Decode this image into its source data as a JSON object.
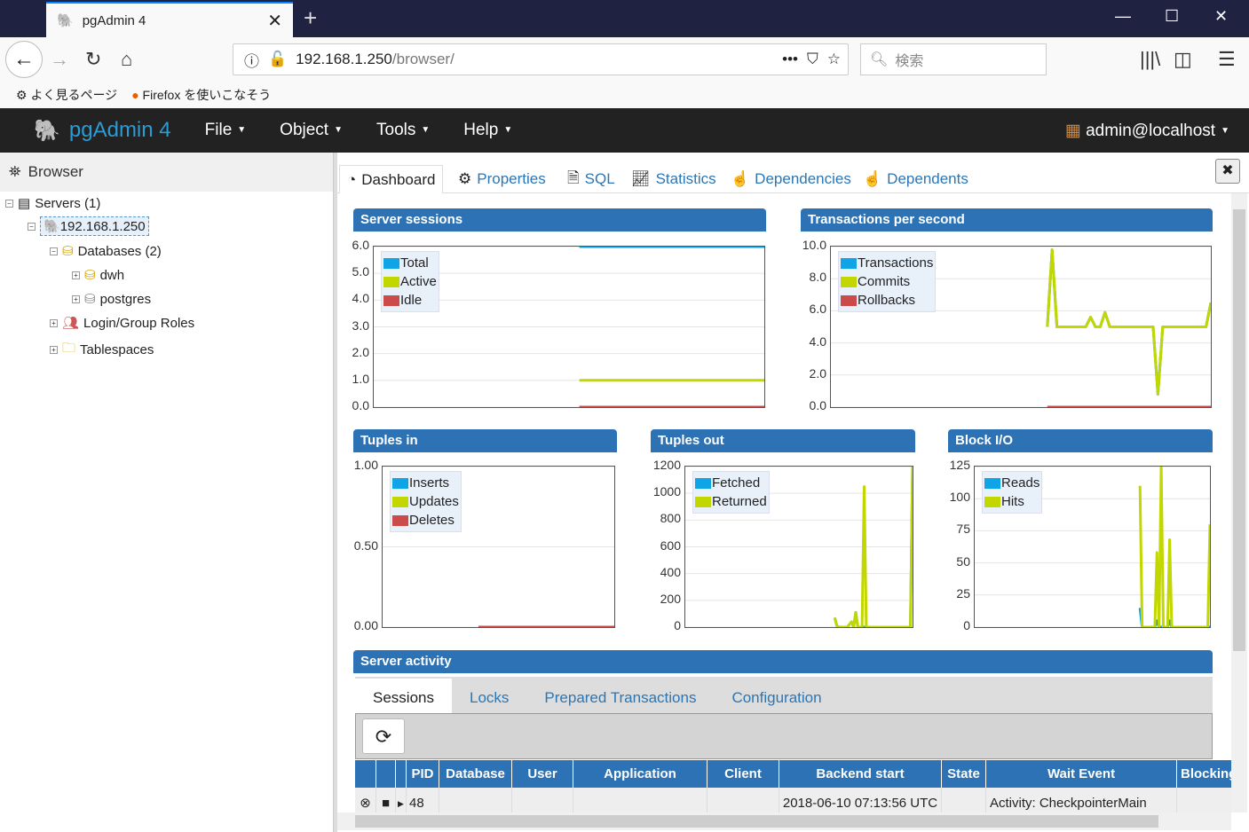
{
  "browser": {
    "tab_title": "pgAdmin 4",
    "url_host": "192.168.1.250",
    "url_path": "/browser/",
    "search_placeholder": "検索",
    "bookmarks": [
      "よく見るページ",
      "Firefox を使いこなそう"
    ]
  },
  "app": {
    "brand": "pgAdmin 4",
    "menus": [
      "File",
      "Object",
      "Tools",
      "Help"
    ],
    "user": "admin@localhost"
  },
  "sidebar": {
    "title": "Browser",
    "tree": [
      {
        "label": "Servers (1)"
      },
      {
        "label": "192.168.1.250"
      },
      {
        "label": "Databases (2)"
      },
      {
        "label": "dwh"
      },
      {
        "label": "postgres"
      },
      {
        "label": "Login/Group Roles"
      },
      {
        "label": "Tablespaces"
      }
    ]
  },
  "tabs": [
    "Dashboard",
    "Properties",
    "SQL",
    "Statistics",
    "Dependencies",
    "Dependents"
  ],
  "colors": {
    "blue": "#0ea4e6",
    "green": "#c2d600",
    "red": "#cb4b4b",
    "header": "#2c72b4"
  },
  "chart_data": [
    {
      "type": "line",
      "title": "Server sessions",
      "ylim": [
        0,
        6
      ],
      "yticks": [
        "0.0",
        "1.0",
        "2.0",
        "3.0",
        "4.0",
        "5.0",
        "6.0"
      ],
      "legend": "top-left",
      "series": [
        {
          "name": "Total",
          "color": "#0ea4e6",
          "values": [
            null,
            null,
            null,
            null,
            null,
            null,
            null,
            null,
            null,
            null,
            6,
            6,
            6,
            6,
            6,
            6,
            6,
            6,
            6,
            6
          ]
        },
        {
          "name": "Active",
          "color": "#c2d600",
          "values": [
            null,
            null,
            null,
            null,
            null,
            null,
            null,
            null,
            null,
            null,
            1,
            1,
            1,
            1,
            1,
            1,
            1,
            1,
            1,
            1
          ]
        },
        {
          "name": "Idle",
          "color": "#cb4b4b",
          "values": [
            null,
            null,
            null,
            null,
            null,
            null,
            null,
            null,
            null,
            null,
            0,
            0,
            0,
            0,
            0,
            0,
            0,
            0,
            0,
            0
          ]
        }
      ]
    },
    {
      "type": "line",
      "title": "Transactions per second",
      "ylim": [
        0,
        10
      ],
      "yticks": [
        "0.0",
        "2.0",
        "4.0",
        "6.0",
        "8.0",
        "10.0"
      ],
      "legend": "top-left",
      "series": [
        {
          "name": "Transactions",
          "color": "#0ea4e6",
          "values": [
            null,
            null,
            null,
            null,
            null,
            null,
            null,
            null,
            null,
            null,
            null,
            null,
            null,
            null,
            null,
            null,
            null,
            null,
            null,
            null,
            null,
            null,
            null,
            null,
            null,
            null,
            null,
            null,
            null,
            null,
            null,
            null,
            null,
            null,
            null,
            null,
            null,
            null,
            null,
            null,
            null,
            null,
            null,
            null,
            null,
            5,
            9.8,
            5,
            5,
            5,
            5,
            5,
            5,
            5,
            5.6,
            5,
            5,
            5.9,
            5,
            5,
            5,
            5,
            5,
            5,
            5,
            5,
            5,
            5,
            0.8,
            5,
            5,
            5,
            5,
            5,
            5,
            5,
            5,
            5,
            5,
            6.5
          ]
        },
        {
          "name": "Commits",
          "color": "#c2d600",
          "values": [
            null,
            null,
            null,
            null,
            null,
            null,
            null,
            null,
            null,
            null,
            null,
            null,
            null,
            null,
            null,
            null,
            null,
            null,
            null,
            null,
            null,
            null,
            null,
            null,
            null,
            null,
            null,
            null,
            null,
            null,
            null,
            null,
            null,
            null,
            null,
            null,
            null,
            null,
            null,
            null,
            null,
            null,
            null,
            null,
            null,
            5,
            9.8,
            5,
            5,
            5,
            5,
            5,
            5,
            5,
            5.6,
            5,
            5,
            5.9,
            5,
            5,
            5,
            5,
            5,
            5,
            5,
            5,
            5,
            5,
            0.8,
            5,
            5,
            5,
            5,
            5,
            5,
            5,
            5,
            5,
            5,
            6.5
          ]
        },
        {
          "name": "Rollbacks",
          "color": "#cb4b4b",
          "values": [
            null,
            null,
            null,
            null,
            null,
            null,
            null,
            null,
            null,
            null,
            null,
            null,
            null,
            null,
            null,
            null,
            null,
            null,
            null,
            null,
            null,
            null,
            null,
            null,
            null,
            null,
            null,
            null,
            null,
            null,
            null,
            null,
            null,
            null,
            null,
            null,
            null,
            null,
            null,
            null,
            null,
            null,
            null,
            null,
            null,
            0,
            0,
            0,
            0,
            0,
            0,
            0,
            0,
            0,
            0,
            0,
            0,
            0,
            0,
            0,
            0,
            0,
            0,
            0,
            0,
            0,
            0,
            0,
            0,
            0,
            0,
            0,
            0,
            0,
            0,
            0,
            0,
            0,
            0,
            0
          ]
        }
      ]
    },
    {
      "type": "line",
      "title": "Tuples in",
      "ylim": [
        0,
        1
      ],
      "yticks": [
        "0.00",
        "0.50",
        "1.00"
      ],
      "legend": "top-left",
      "series": [
        {
          "name": "Inserts",
          "color": "#0ea4e6",
          "values": []
        },
        {
          "name": "Updates",
          "color": "#c2d600",
          "values": []
        },
        {
          "name": "Deletes",
          "color": "#cb4b4b",
          "values": [
            null,
            null,
            null,
            null,
            null,
            null,
            null,
            null,
            null,
            null,
            null,
            null,
            0,
            0,
            0,
            0,
            0,
            0,
            0,
            0,
            0,
            0,
            0,
            0,
            0,
            0,
            0,
            0,
            0,
            0
          ]
        }
      ]
    },
    {
      "type": "line",
      "title": "Tuples out",
      "ylim": [
        0,
        1200
      ],
      "yticks": [
        "0",
        "200",
        "400",
        "600",
        "800",
        "1000",
        "1200"
      ],
      "legend": "top-left",
      "series": [
        {
          "name": "Fetched",
          "color": "#0ea4e6",
          "values": [
            null,
            null,
            null,
            null,
            null,
            null,
            null,
            null,
            null,
            null,
            null,
            null,
            null,
            null,
            null,
            null,
            null,
            null,
            null,
            null,
            null,
            null,
            null,
            null,
            null,
            null,
            null,
            null,
            null,
            null,
            null,
            null,
            null,
            null,
            null,
            null,
            null,
            null,
            null,
            null,
            null,
            null,
            null,
            null,
            null,
            null,
            null,
            null,
            null,
            null,
            null,
            null,
            null,
            null,
            null,
            null,
            null,
            null,
            null,
            null,
            null,
            null,
            null,
            null,
            null,
            null,
            null,
            null,
            null,
            null,
            null,
            70,
            10,
            0,
            0,
            0,
            0,
            0,
            20,
            40,
            0,
            110,
            0,
            0,
            0,
            0,
            0,
            0,
            0,
            0,
            0,
            0,
            0,
            0,
            0,
            0,
            0,
            0,
            0,
            0,
            0,
            0,
            0,
            0,
            0,
            0,
            0,
            0,
            1200
          ]
        },
        {
          "name": "Returned",
          "color": "#c2d600",
          "values": [
            null,
            null,
            null,
            null,
            null,
            null,
            null,
            null,
            null,
            null,
            null,
            null,
            null,
            null,
            null,
            null,
            null,
            null,
            null,
            null,
            null,
            null,
            null,
            null,
            null,
            null,
            null,
            null,
            null,
            null,
            null,
            null,
            null,
            null,
            null,
            null,
            null,
            null,
            null,
            null,
            null,
            null,
            null,
            null,
            null,
            null,
            null,
            null,
            null,
            null,
            null,
            null,
            null,
            null,
            null,
            null,
            null,
            null,
            null,
            null,
            null,
            null,
            null,
            null,
            null,
            null,
            null,
            null,
            null,
            null,
            null,
            70,
            10,
            0,
            0,
            0,
            0,
            0,
            20,
            40,
            0,
            110,
            0,
            0,
            0,
            1050,
            0,
            0,
            0,
            0,
            0,
            0,
            0,
            0,
            0,
            0,
            0,
            0,
            0,
            0,
            0,
            0,
            0,
            0,
            0,
            0,
            0,
            0,
            1200
          ]
        }
      ]
    },
    {
      "type": "line",
      "title": "Block I/O",
      "ylim": [
        0,
        125
      ],
      "yticks": [
        "0",
        "25",
        "50",
        "75",
        "100",
        "125"
      ],
      "legend": "top-left",
      "series": [
        {
          "name": "Reads",
          "color": "#0ea4e6",
          "values": [
            null,
            null,
            null,
            null,
            null,
            null,
            null,
            null,
            null,
            null,
            null,
            null,
            null,
            null,
            null,
            null,
            null,
            null,
            null,
            null,
            null,
            null,
            null,
            null,
            null,
            null,
            null,
            null,
            null,
            null,
            null,
            null,
            null,
            null,
            null,
            null,
            null,
            null,
            null,
            null,
            null,
            null,
            null,
            null,
            null,
            null,
            null,
            null,
            null,
            null,
            null,
            null,
            null,
            null,
            null,
            null,
            null,
            null,
            null,
            null,
            null,
            null,
            null,
            null,
            null,
            null,
            null,
            null,
            null,
            null,
            null,
            null,
            null,
            null,
            null,
            null,
            null,
            null,
            15,
            0,
            0,
            0,
            0,
            0,
            0,
            0,
            5,
            0,
            0,
            0,
            0,
            0,
            5,
            0,
            0,
            0,
            0,
            0,
            0,
            0,
            0,
            0,
            0,
            0,
            0,
            0,
            0,
            0,
            0,
            0,
            0,
            0
          ]
        },
        {
          "name": "Hits",
          "color": "#c2d600",
          "values": [
            null,
            null,
            null,
            null,
            null,
            null,
            null,
            null,
            null,
            null,
            null,
            null,
            null,
            null,
            null,
            null,
            null,
            null,
            null,
            null,
            null,
            null,
            null,
            null,
            null,
            null,
            null,
            null,
            null,
            null,
            null,
            null,
            null,
            null,
            null,
            null,
            null,
            null,
            null,
            null,
            null,
            null,
            null,
            null,
            null,
            null,
            null,
            null,
            null,
            null,
            null,
            null,
            null,
            null,
            null,
            null,
            null,
            null,
            null,
            null,
            null,
            null,
            null,
            null,
            null,
            null,
            null,
            null,
            null,
            null,
            null,
            null,
            null,
            null,
            null,
            null,
            null,
            null,
            110,
            0,
            0,
            0,
            0,
            0,
            0,
            0,
            58,
            0,
            125,
            0,
            0,
            0,
            68,
            0,
            0,
            0,
            0,
            0,
            0,
            0,
            0,
            0,
            0,
            0,
            0,
            0,
            0,
            0,
            0,
            0,
            0,
            80
          ]
        }
      ]
    }
  ],
  "activity": {
    "title": "Server activity",
    "subtabs": [
      "Sessions",
      "Locks",
      "Prepared Transactions",
      "Configuration"
    ],
    "columns": [
      "",
      "",
      "",
      "PID",
      "Database",
      "User",
      "Application",
      "Client",
      "Backend start",
      "State",
      "Wait Event",
      "Blocking"
    ],
    "rows": [
      [
        "48",
        "",
        "",
        "",
        "",
        "2018-06-10 07:13:56 UTC",
        "",
        "Activity: CheckpointerMain",
        ""
      ]
    ]
  }
}
